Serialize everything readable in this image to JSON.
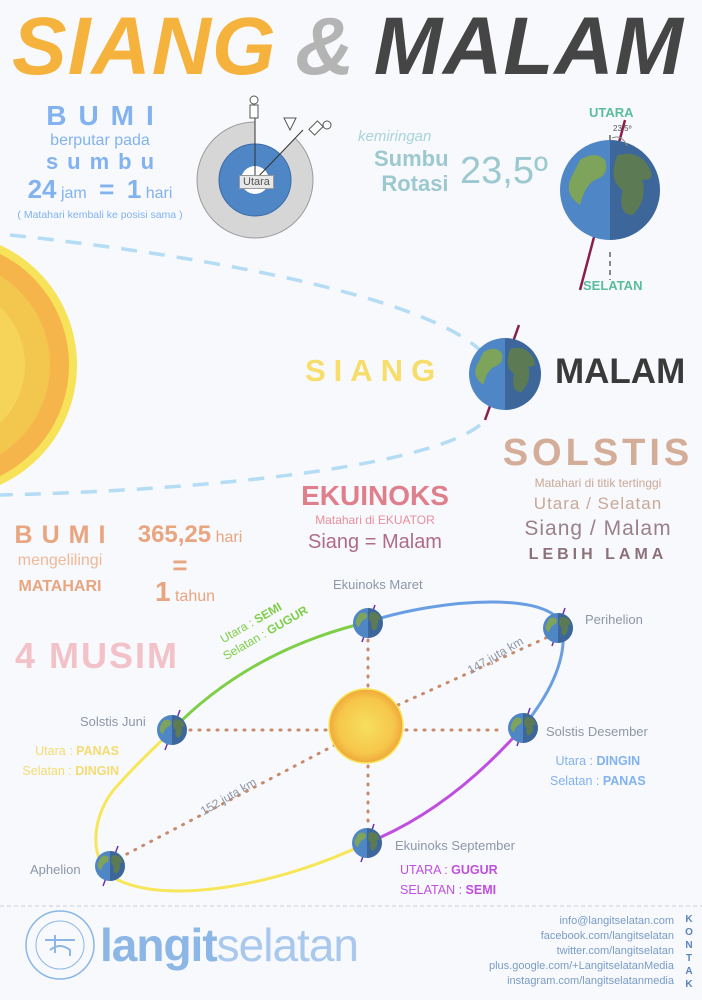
{
  "title": {
    "siang": "SIANG",
    "amp": "&",
    "malam": "MALAM"
  },
  "colors": {
    "siang": "#f5b33e",
    "amp": "#b4b4b4",
    "malam": "#454545",
    "earth_ocean": "#4f86c6",
    "earth_land": "#7ea35a",
    "sun": "#f7c843"
  },
  "rotation": {
    "heading": "BUMI",
    "line1": "berputar pada",
    "line2": "sumbu",
    "hours_num": "24",
    "hours_unit": "jam",
    "equals": "=",
    "day_num": "1",
    "day_unit": "hari",
    "note": "( Matahari kembali ke posisi sama )",
    "diagram_label": "Utara"
  },
  "tilt": {
    "kicker": "kemiringan",
    "line1": "Sumbu",
    "line2": "Rotasi",
    "value": "23,5º",
    "north": "UTARA",
    "south": "SELATAN",
    "angle_label": "23.5º"
  },
  "daynight": {
    "day": "SIANG",
    "night": "MALAM"
  },
  "solstice": {
    "heading": "SOLSTIS",
    "line1": "Matahari di titik tertinggi",
    "line2": "Utara / Selatan",
    "line3": "Siang / Malam",
    "line4": "LEBIH LAMA"
  },
  "equinox": {
    "heading": "EKUINOKS",
    "line1": "Matahari di EKUATOR",
    "line2": "Siang = Malam"
  },
  "revolution": {
    "heading": "BUMI",
    "line1": "mengelilingi",
    "line2": "MATAHARI",
    "days_num": "365,25",
    "days_unit": "hari",
    "equals": "=",
    "year_num": "1",
    "year_unit": "tahun"
  },
  "seasons": {
    "heading": "4 MUSIM",
    "march": "Ekuinoks Maret",
    "perihelion": "Perihelion",
    "december": "Solstis Desember",
    "september": "Ekuinoks September",
    "aphelion": "Aphelion",
    "june": "Solstis Juni",
    "green_n_label": "Utara : ",
    "green_n_val": "SEMI",
    "green_s_label": "Selatan : ",
    "green_s_val": "GUGUR",
    "june_n_label": "Utara : ",
    "june_n_val": "PANAS",
    "june_s_label": "Selatan : ",
    "june_s_val": "DINGIN",
    "dec_n_label": "Utara : ",
    "dec_n_val": "DINGIN",
    "dec_s_label": "Selatan : ",
    "dec_s_val": "PANAS",
    "sep_n_label": "UTARA : ",
    "sep_n_val": "GUGUR",
    "sep_s_label": "SELATAN : ",
    "sep_s_val": "SEMI",
    "dist_near": "147 juta km",
    "dist_far": "152 juta km"
  },
  "footer": {
    "logo_text": "LANGITSELATAN · ASTRO 101",
    "brand_bold": "langit",
    "brand_light": "selatan",
    "contact_heading": "KONTAK",
    "contacts": [
      "info@langitselatan.com",
      "facebook.com/langitselatan",
      "twitter.com/langitselatan",
      "plus.google.com/+LangitselatanMedia",
      "instagram.com/langitselatanmedia"
    ]
  }
}
